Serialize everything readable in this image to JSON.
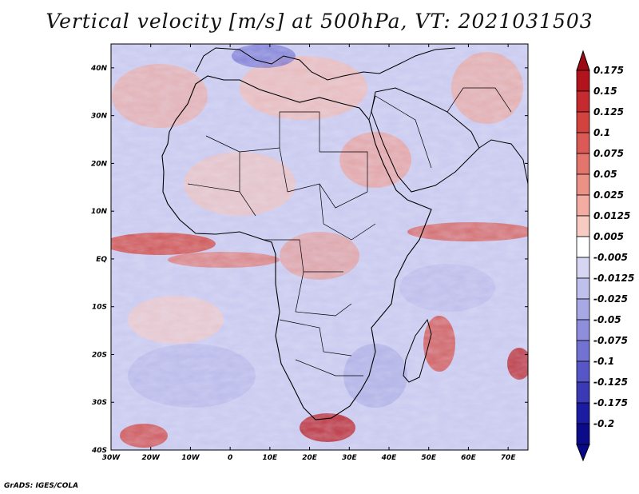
{
  "title": "Vertical velocity [m/s] at 500hPa, VT: 2021031503",
  "footer": "GrADS: IGES/COLA",
  "map": {
    "lon_range": [
      -30,
      75
    ],
    "lat_range": [
      -40,
      45
    ],
    "x_ticks": [
      "30W",
      "20W",
      "10W",
      "0",
      "10E",
      "20E",
      "30E",
      "40E",
      "50E",
      "60E",
      "70E"
    ],
    "y_ticks": [
      "40N",
      "30N",
      "20N",
      "10N",
      "EQ",
      "10S",
      "20S",
      "30S",
      "40S"
    ]
  },
  "colorbar": {
    "labels": [
      "0.175",
      "0.15",
      "0.125",
      "0.1",
      "0.075",
      "0.05",
      "0.025",
      "0.0125",
      "0.005",
      "-0.005",
      "-0.0125",
      "-0.025",
      "-0.05",
      "-0.075",
      "-0.1",
      "-0.125",
      "-0.175",
      "-0.2"
    ],
    "colors": [
      "#b2141e",
      "#c52b2e",
      "#d2433f",
      "#dc5a55",
      "#e4756c",
      "#ec9186",
      "#f2aca2",
      "#f8cbc2",
      "#ffffff",
      "#d6d6f2",
      "#c0c0ec",
      "#a8a8e4",
      "#8e8edc",
      "#7272d2",
      "#5656c6",
      "#3a3ab6",
      "#1c1ca2",
      "#0c0c8a"
    ],
    "top_arrow_color": "#9e0a14",
    "bottom_arrow_color": "#08088a"
  }
}
